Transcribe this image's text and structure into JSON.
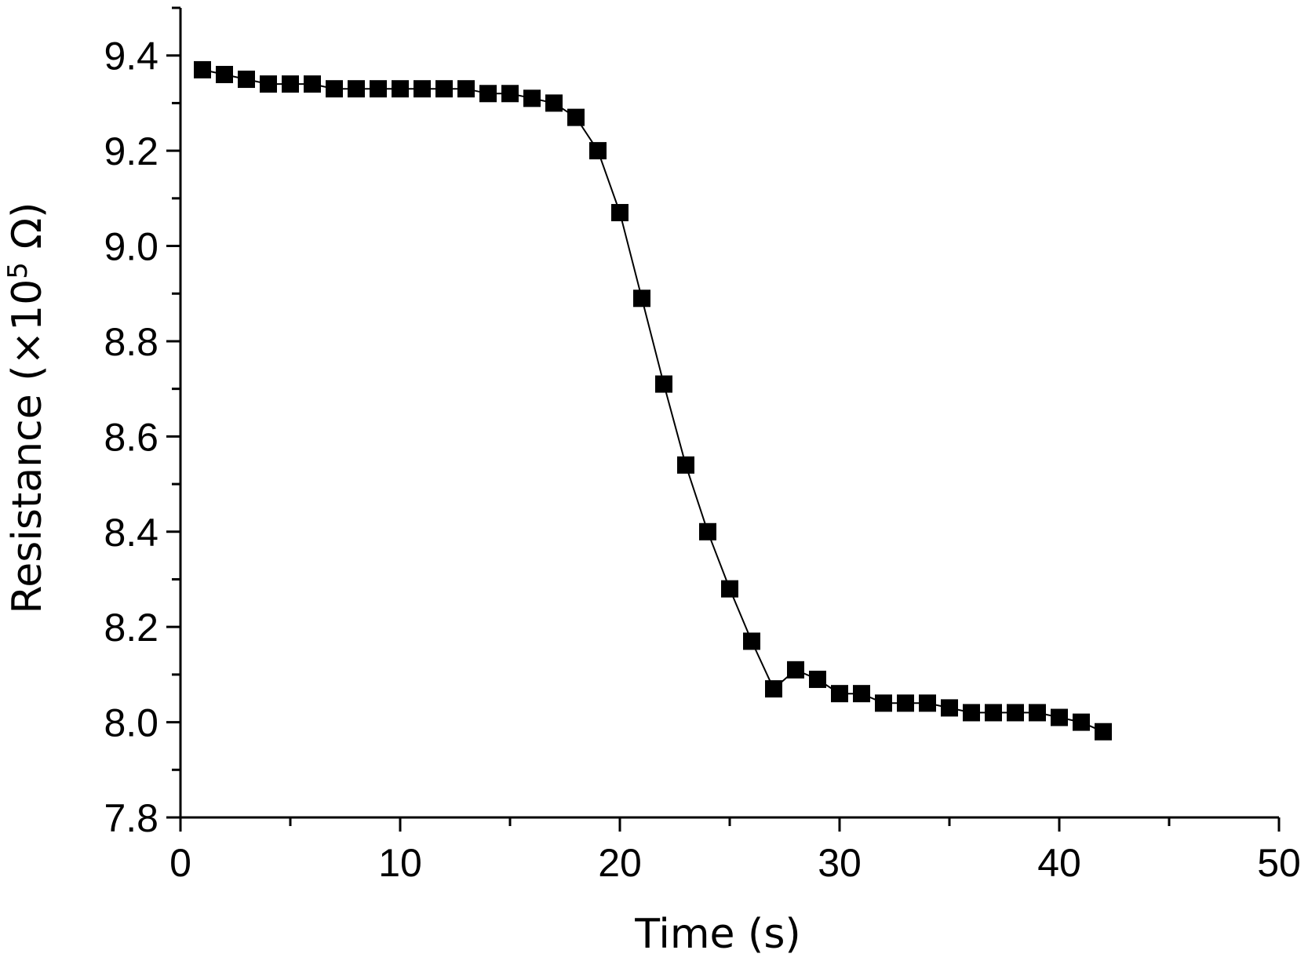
{
  "chart_data": {
    "type": "scatter",
    "title": "",
    "xlabel": "Time (s)",
    "ylabel_main": "Resistance (×10",
    "ylabel_sup": "5",
    "ylabel_end": " Ω)",
    "xlim": [
      0,
      50
    ],
    "ylim": [
      7.8,
      9.5
    ],
    "x_ticks": [
      0,
      10,
      20,
      30,
      40,
      50
    ],
    "x_tick_labels": [
      "0",
      "10",
      "20",
      "30",
      "40",
      "50"
    ],
    "y_ticks": [
      7.8,
      8.0,
      8.2,
      8.4,
      8.6,
      8.8,
      9.0,
      9.2,
      9.4
    ],
    "y_tick_labels": [
      "7.8",
      "8.0",
      "8.2",
      "8.4",
      "8.6",
      "8.8",
      "9.0",
      "9.2",
      "9.4"
    ],
    "grid": false,
    "line_connect": true,
    "marker": "square",
    "marker_color": "#000000",
    "series": [
      {
        "name": "Resistance",
        "x": [
          1,
          2,
          3,
          4,
          5,
          6,
          7,
          8,
          9,
          10,
          11,
          12,
          13,
          14,
          15,
          16,
          17,
          18,
          19,
          20,
          21,
          22,
          23,
          24,
          25,
          26,
          27,
          28,
          29,
          30,
          31,
          32,
          33,
          34,
          35,
          36,
          37,
          38,
          39,
          40,
          41,
          42
        ],
        "y": [
          9.37,
          9.36,
          9.35,
          9.34,
          9.34,
          9.34,
          9.33,
          9.33,
          9.33,
          9.33,
          9.33,
          9.33,
          9.33,
          9.32,
          9.32,
          9.31,
          9.3,
          9.27,
          9.2,
          9.07,
          8.89,
          8.71,
          8.54,
          8.4,
          8.28,
          8.17,
          8.07,
          8.11,
          8.09,
          8.06,
          8.06,
          8.04,
          8.04,
          8.04,
          8.03,
          8.02,
          8.02,
          8.02,
          8.02,
          8.01,
          8.0,
          7.98
        ]
      }
    ]
  }
}
